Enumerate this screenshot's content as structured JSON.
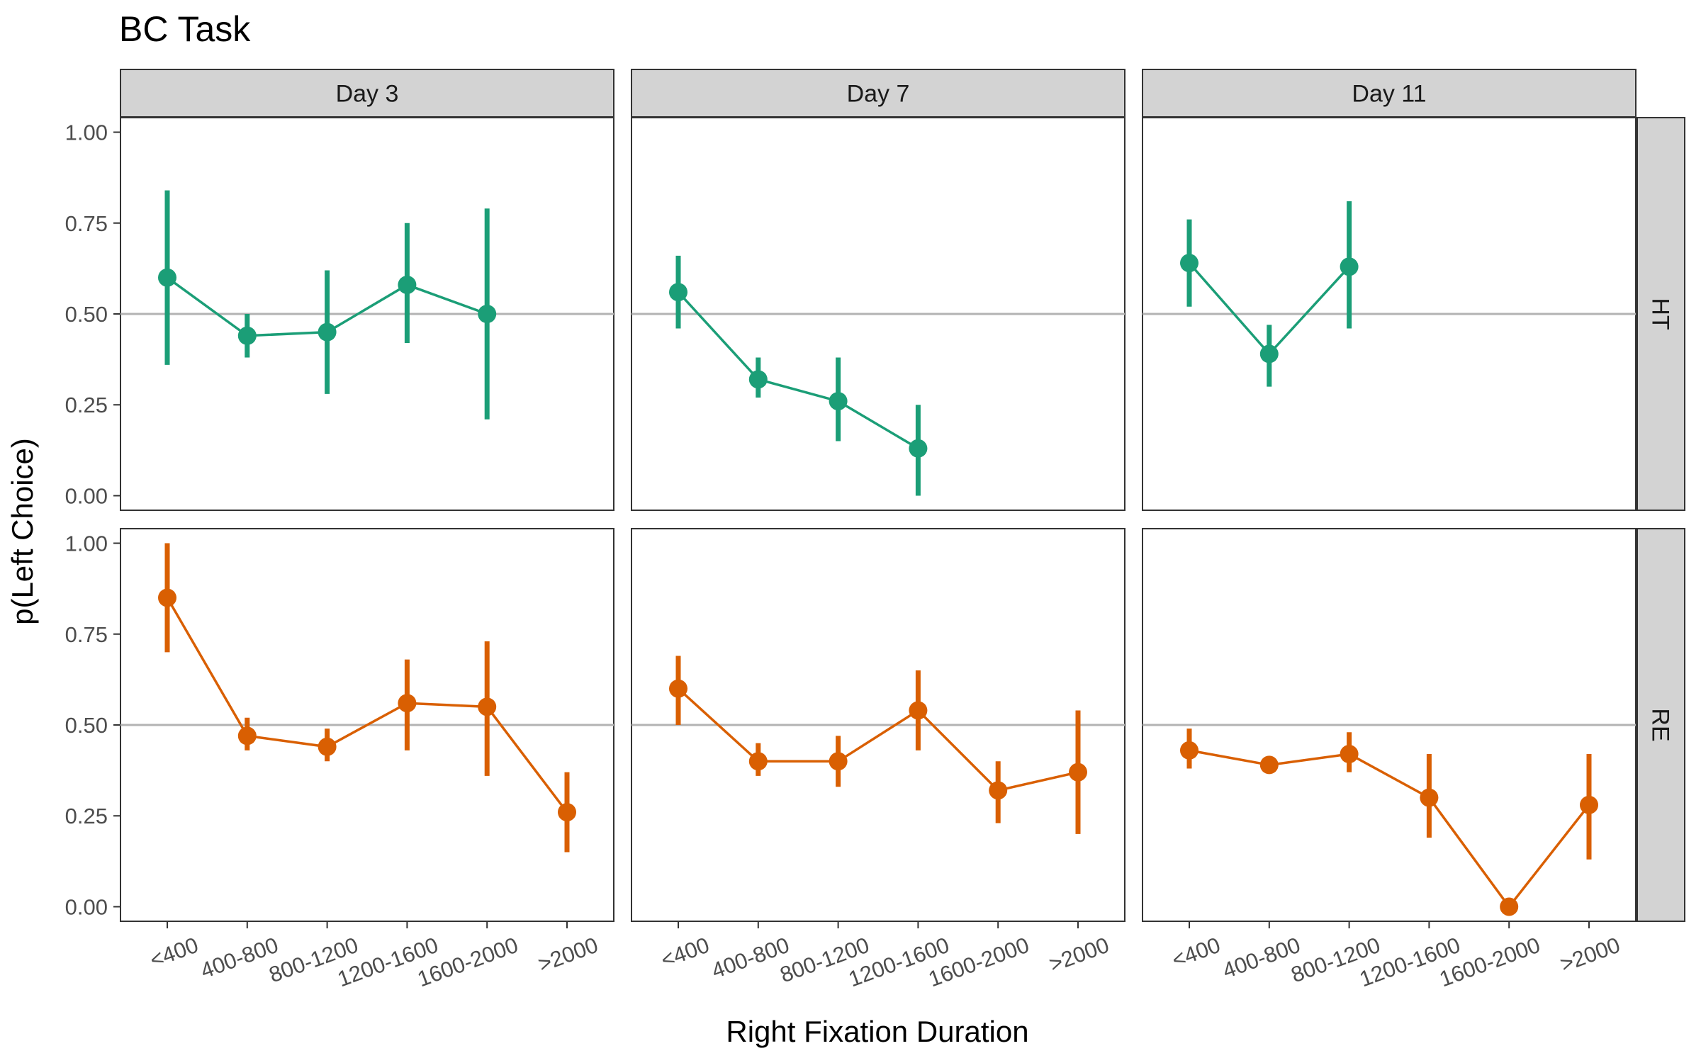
{
  "chart_data": {
    "type": "line",
    "title": "BC Task",
    "xlabel": "Right Fixation Duration",
    "ylabel": "p(Left Choice)",
    "categories": [
      "<400",
      "400-800",
      "800-1200",
      "1200-1600",
      "1600-2000",
      ">2000"
    ],
    "yticks": [
      "0.00",
      "0.25",
      "0.50",
      "0.75",
      "1.00"
    ],
    "ylim": [
      -0.04,
      1.04
    ],
    "reference_line": 0.5,
    "columns": [
      "Day 3",
      "Day 7",
      "Day 11"
    ],
    "rows": [
      "HT",
      "RE"
    ],
    "colors": {
      "HT": "#1b9e77",
      "RE": "#d95f02",
      "strip": "#d3d3d3",
      "refline": "#b3b3b3"
    },
    "panels": [
      {
        "row": "HT",
        "column": "Day 3",
        "points": [
          {
            "x": "<400",
            "y": 0.6,
            "lo": 0.36,
            "hi": 0.84
          },
          {
            "x": "400-800",
            "y": 0.44,
            "lo": 0.38,
            "hi": 0.5
          },
          {
            "x": "800-1200",
            "y": 0.45,
            "lo": 0.28,
            "hi": 0.62
          },
          {
            "x": "1200-1600",
            "y": 0.58,
            "lo": 0.42,
            "hi": 0.75
          },
          {
            "x": "1600-2000",
            "y": 0.5,
            "lo": 0.21,
            "hi": 0.79
          }
        ]
      },
      {
        "row": "HT",
        "column": "Day 7",
        "points": [
          {
            "x": "<400",
            "y": 0.56,
            "lo": 0.46,
            "hi": 0.66
          },
          {
            "x": "400-800",
            "y": 0.32,
            "lo": 0.27,
            "hi": 0.38
          },
          {
            "x": "800-1200",
            "y": 0.26,
            "lo": 0.15,
            "hi": 0.38
          },
          {
            "x": "1200-1600",
            "y": 0.13,
            "lo": 0.0,
            "hi": 0.25
          }
        ]
      },
      {
        "row": "HT",
        "column": "Day 11",
        "points": [
          {
            "x": "<400",
            "y": 0.64,
            "lo": 0.52,
            "hi": 0.76
          },
          {
            "x": "400-800",
            "y": 0.39,
            "lo": 0.3,
            "hi": 0.47
          },
          {
            "x": "800-1200",
            "y": 0.63,
            "lo": 0.46,
            "hi": 0.81
          }
        ]
      },
      {
        "row": "RE",
        "column": "Day 3",
        "points": [
          {
            "x": "<400",
            "y": 0.85,
            "lo": 0.7,
            "hi": 1.0
          },
          {
            "x": "400-800",
            "y": 0.47,
            "lo": 0.43,
            "hi": 0.52
          },
          {
            "x": "800-1200",
            "y": 0.44,
            "lo": 0.4,
            "hi": 0.49
          },
          {
            "x": "1200-1600",
            "y": 0.56,
            "lo": 0.43,
            "hi": 0.68
          },
          {
            "x": "1600-2000",
            "y": 0.55,
            "lo": 0.36,
            "hi": 0.73
          },
          {
            "x": ">2000",
            "y": 0.26,
            "lo": 0.15,
            "hi": 0.37
          }
        ]
      },
      {
        "row": "RE",
        "column": "Day 7",
        "points": [
          {
            "x": "<400",
            "y": 0.6,
            "lo": 0.5,
            "hi": 0.69
          },
          {
            "x": "400-800",
            "y": 0.4,
            "lo": 0.36,
            "hi": 0.45
          },
          {
            "x": "800-1200",
            "y": 0.4,
            "lo": 0.33,
            "hi": 0.47
          },
          {
            "x": "1200-1600",
            "y": 0.54,
            "lo": 0.43,
            "hi": 0.65
          },
          {
            "x": "1600-2000",
            "y": 0.32,
            "lo": 0.23,
            "hi": 0.4
          },
          {
            "x": ">2000",
            "y": 0.37,
            "lo": 0.2,
            "hi": 0.54
          }
        ]
      },
      {
        "row": "RE",
        "column": "Day 11",
        "points": [
          {
            "x": "<400",
            "y": 0.43,
            "lo": 0.38,
            "hi": 0.49
          },
          {
            "x": "400-800",
            "y": 0.39,
            "lo": 0.37,
            "hi": 0.41
          },
          {
            "x": "800-1200",
            "y": 0.42,
            "lo": 0.37,
            "hi": 0.48
          },
          {
            "x": "1200-1600",
            "y": 0.3,
            "lo": 0.19,
            "hi": 0.42
          },
          {
            "x": "1600-2000",
            "y": 0.0,
            "lo": 0.0,
            "hi": 0.0
          },
          {
            "x": ">2000",
            "y": 0.28,
            "lo": 0.13,
            "hi": 0.42
          }
        ]
      }
    ]
  }
}
